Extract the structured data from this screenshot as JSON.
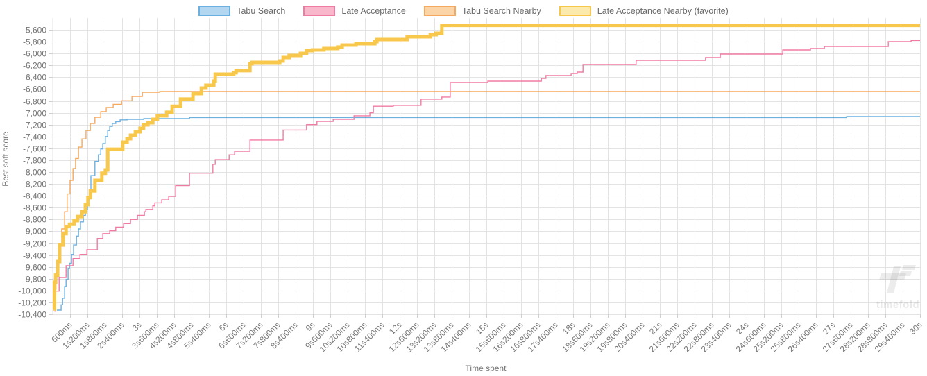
{
  "watermark": {
    "text": "timefold"
  },
  "legend": {
    "items": [
      {
        "label": "Tabu Search",
        "color": "#6cb0e0",
        "fill": "#b3d7f0"
      },
      {
        "label": "Late Acceptance",
        "color": "#f07ba2",
        "fill": "#f8b7ca"
      },
      {
        "label": "Tabu Search Nearby",
        "color": "#f5a95f",
        "fill": "#fbd5a7"
      },
      {
        "label": "Late Acceptance Nearby (favorite)",
        "color": "#f7c84b",
        "fill": "#fce9ad"
      }
    ]
  },
  "chart_data": {
    "type": "line",
    "step": true,
    "title": "",
    "xlabel": "Time spent",
    "ylabel": "Best soft score",
    "grid": true,
    "legend_position": "top",
    "x_range_ms": [
      0,
      30000
    ],
    "x_tick_interval_ms": 600,
    "x_tick_labels": [
      "600ms",
      "1s200ms",
      "1s800ms",
      "2s400ms",
      "3s",
      "3s600ms",
      "4s200ms",
      "4s800ms",
      "5s400ms",
      "6s",
      "6s600ms",
      "7s200ms",
      "7s800ms",
      "8s400ms",
      "9s",
      "9s600ms",
      "10s200ms",
      "10s800ms",
      "11s400ms",
      "12s",
      "12s600ms",
      "13s200ms",
      "13s800ms",
      "14s400ms",
      "15s",
      "15s600ms",
      "16s200ms",
      "16s800ms",
      "17s400ms",
      "18s",
      "18s600ms",
      "19s200ms",
      "19s800ms",
      "20s400ms",
      "21s",
      "21s600ms",
      "22s200ms",
      "22s800ms",
      "23s400ms",
      "24s",
      "24s600ms",
      "25s200ms",
      "25s800ms",
      "26s400ms",
      "27s",
      "27s600ms",
      "28s200ms",
      "28s800ms",
      "29s400ms",
      "30s"
    ],
    "ylim": [
      -10400,
      -5600
    ],
    "y_tick_step": 200,
    "y_tick_labels": [
      "-5,600",
      "-5,800",
      "-6,000",
      "-6,200",
      "-6,400",
      "-6,600",
      "-6,800",
      "-7,000",
      "-7,200",
      "-7,400",
      "-7,600",
      "-7,800",
      "-8,000",
      "-8,200",
      "-8,400",
      "-8,600",
      "-8,800",
      "-9,000",
      "-9,200",
      "-9,400",
      "-9,600",
      "-9,800",
      "-10,000",
      "-10,200",
      "-10,400"
    ],
    "series": [
      {
        "name": "Tabu Search",
        "color": "#6cb0e0",
        "width": 1.4,
        "points": [
          [
            140,
            -10330
          ],
          [
            290,
            -10240
          ],
          [
            340,
            -10130
          ],
          [
            410,
            -9930
          ],
          [
            460,
            -9810
          ],
          [
            530,
            -9630
          ],
          [
            580,
            -9540
          ],
          [
            650,
            -9390
          ],
          [
            720,
            -9230
          ],
          [
            820,
            -9080
          ],
          [
            890,
            -8960
          ],
          [
            960,
            -8840
          ],
          [
            1060,
            -8730
          ],
          [
            1130,
            -8630
          ],
          [
            1200,
            -8530
          ],
          [
            1270,
            -8310
          ],
          [
            1320,
            -8060
          ],
          [
            1460,
            -7820
          ],
          [
            1580,
            -7710
          ],
          [
            1660,
            -7610
          ],
          [
            1730,
            -7520
          ],
          [
            1820,
            -7400
          ],
          [
            1900,
            -7300
          ],
          [
            1970,
            -7230
          ],
          [
            2060,
            -7180
          ],
          [
            2180,
            -7150
          ],
          [
            2330,
            -7120
          ],
          [
            2570,
            -7110
          ],
          [
            3150,
            -7098
          ],
          [
            4730,
            -7080
          ],
          [
            27460,
            -7063
          ],
          [
            30000,
            -7063
          ]
        ]
      },
      {
        "name": "Late Acceptance",
        "color": "#f07ba2",
        "width": 1.4,
        "points": [
          [
            60,
            -10350
          ],
          [
            96,
            -10010
          ],
          [
            220,
            -9780
          ],
          [
            460,
            -9580
          ],
          [
            700,
            -9460
          ],
          [
            940,
            -9390
          ],
          [
            1180,
            -9310
          ],
          [
            1540,
            -9120
          ],
          [
            1730,
            -9040
          ],
          [
            1970,
            -8990
          ],
          [
            2180,
            -8930
          ],
          [
            2450,
            -8870
          ],
          [
            2690,
            -8800
          ],
          [
            2930,
            -8730
          ],
          [
            3170,
            -8670
          ],
          [
            3220,
            -8630
          ],
          [
            3460,
            -8570
          ],
          [
            3530,
            -8520
          ],
          [
            3770,
            -8470
          ],
          [
            4010,
            -8410
          ],
          [
            4250,
            -8230
          ],
          [
            4730,
            -8020
          ],
          [
            5540,
            -7870
          ],
          [
            5620,
            -7790
          ],
          [
            6100,
            -7710
          ],
          [
            6290,
            -7650
          ],
          [
            6820,
            -7460
          ],
          [
            7970,
            -7290
          ],
          [
            8780,
            -7200
          ],
          [
            9140,
            -7145
          ],
          [
            9700,
            -7110
          ],
          [
            10420,
            -7050
          ],
          [
            10970,
            -7000
          ],
          [
            11090,
            -6890
          ],
          [
            11780,
            -6875
          ],
          [
            12740,
            -6770
          ],
          [
            13460,
            -6735
          ],
          [
            13750,
            -6490
          ],
          [
            15050,
            -6466
          ],
          [
            16900,
            -6420
          ],
          [
            17060,
            -6372
          ],
          [
            17930,
            -6337
          ],
          [
            18140,
            -6314
          ],
          [
            18340,
            -6185
          ],
          [
            20180,
            -6115
          ],
          [
            22580,
            -6068
          ],
          [
            23090,
            -6010
          ],
          [
            25250,
            -5939
          ],
          [
            26210,
            -5916
          ],
          [
            26690,
            -5881
          ],
          [
            28900,
            -5799
          ],
          [
            29690,
            -5780
          ],
          [
            30000,
            -5780
          ]
        ]
      },
      {
        "name": "Tabu Search Nearby",
        "color": "#f5a95f",
        "width": 1.4,
        "points": [
          [
            20,
            -10250
          ],
          [
            60,
            -9980
          ],
          [
            110,
            -9740
          ],
          [
            170,
            -9510
          ],
          [
            240,
            -9230
          ],
          [
            310,
            -8960
          ],
          [
            410,
            -8670
          ],
          [
            500,
            -8370
          ],
          [
            600,
            -8140
          ],
          [
            700,
            -7940
          ],
          [
            790,
            -7770
          ],
          [
            890,
            -7580
          ],
          [
            1010,
            -7440
          ],
          [
            1150,
            -7300
          ],
          [
            1300,
            -7180
          ],
          [
            1460,
            -7075
          ],
          [
            1660,
            -6980
          ],
          [
            1850,
            -6910
          ],
          [
            2090,
            -6857
          ],
          [
            2380,
            -6798
          ],
          [
            2740,
            -6724
          ],
          [
            3100,
            -6655
          ],
          [
            3700,
            -6641
          ],
          [
            30000,
            -6641
          ]
        ]
      },
      {
        "name": "Late Acceptance Nearby (favorite)",
        "color": "#f7c84b",
        "width": 5,
        "points": [
          [
            20,
            -10310
          ],
          [
            60,
            -9860
          ],
          [
            100,
            -9740
          ],
          [
            170,
            -9510
          ],
          [
            240,
            -9230
          ],
          [
            360,
            -9040
          ],
          [
            460,
            -8920
          ],
          [
            580,
            -8880
          ],
          [
            740,
            -8820
          ],
          [
            860,
            -8750
          ],
          [
            1010,
            -8670
          ],
          [
            1130,
            -8550
          ],
          [
            1220,
            -8430
          ],
          [
            1300,
            -8320
          ],
          [
            1460,
            -8140
          ],
          [
            1700,
            -8020
          ],
          [
            1820,
            -7965
          ],
          [
            1900,
            -7615
          ],
          [
            2420,
            -7497
          ],
          [
            2570,
            -7438
          ],
          [
            2690,
            -7380
          ],
          [
            2860,
            -7321
          ],
          [
            3020,
            -7263
          ],
          [
            3140,
            -7204
          ],
          [
            3290,
            -7169
          ],
          [
            3460,
            -7110
          ],
          [
            3620,
            -7051
          ],
          [
            3940,
            -6992
          ],
          [
            4130,
            -6890
          ],
          [
            4420,
            -6770
          ],
          [
            4850,
            -6677
          ],
          [
            5140,
            -6583
          ],
          [
            5300,
            -6536
          ],
          [
            5570,
            -6466
          ],
          [
            5620,
            -6349
          ],
          [
            6260,
            -6325
          ],
          [
            6340,
            -6290
          ],
          [
            6820,
            -6173
          ],
          [
            6890,
            -6150
          ],
          [
            7850,
            -6127
          ],
          [
            7970,
            -6068
          ],
          [
            8180,
            -6033
          ],
          [
            8570,
            -5998
          ],
          [
            8780,
            -5951
          ],
          [
            8980,
            -5939
          ],
          [
            9380,
            -5916
          ],
          [
            9860,
            -5892
          ],
          [
            10010,
            -5857
          ],
          [
            10490,
            -5834
          ],
          [
            11140,
            -5799
          ],
          [
            11210,
            -5764
          ],
          [
            12260,
            -5717
          ],
          [
            13060,
            -5682
          ],
          [
            13260,
            -5659
          ],
          [
            13460,
            -5525
          ],
          [
            30000,
            -5525
          ]
        ]
      }
    ]
  }
}
